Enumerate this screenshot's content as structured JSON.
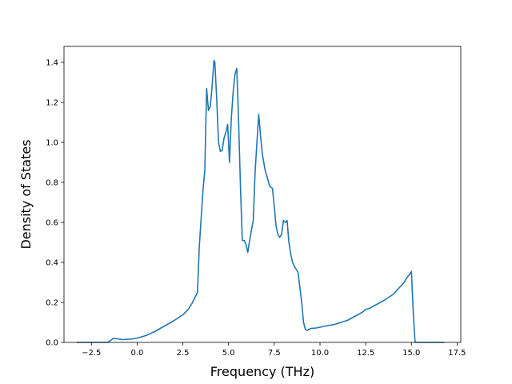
{
  "chart_data": {
    "type": "line",
    "title": "",
    "xlabel": "Frequency (THz)",
    "ylabel": "Density of States",
    "xlim": [
      -4.0,
      17.7
    ],
    "ylim": [
      0.0,
      1.48
    ],
    "xticks": [
      -2.5,
      0.0,
      2.5,
      5.0,
      7.5,
      10.0,
      12.5,
      15.0,
      17.5
    ],
    "xtick_labels": [
      "−2.5",
      "0.0",
      "2.5",
      "5.0",
      "7.5",
      "10.0",
      "12.5",
      "15.0",
      "17.5"
    ],
    "yticks": [
      0.0,
      0.2,
      0.4,
      0.6,
      0.8,
      1.0,
      1.2,
      1.4
    ],
    "ytick_labels": [
      "0.0",
      "0.2",
      "0.4",
      "0.6",
      "0.8",
      "1.0",
      "1.2",
      "1.4"
    ],
    "grid": false,
    "line_color": "#1f77b4",
    "series": [
      {
        "x": [
          -3.3,
          -2.5,
          -1.6,
          -1.3,
          -1.1,
          -0.8,
          -0.3,
          0.0,
          0.5,
          1.0,
          1.5,
          2.0,
          2.5,
          2.8,
          3.0,
          3.3,
          3.4,
          3.5,
          3.6,
          3.7,
          3.8,
          3.9,
          4.0,
          4.1,
          4.2,
          4.25,
          4.35,
          4.45,
          4.55,
          4.65,
          4.75,
          4.85,
          4.95,
          5.05,
          5.15,
          5.25,
          5.35,
          5.45,
          5.55,
          5.65,
          5.75,
          5.85,
          5.95,
          6.05,
          6.15,
          6.25,
          6.35,
          6.45,
          6.55,
          6.65,
          6.75,
          6.85,
          7.0,
          7.1,
          7.25,
          7.4,
          7.5,
          7.6,
          7.7,
          7.8,
          7.9,
          8.0,
          8.1,
          8.2,
          8.3,
          8.4,
          8.5,
          8.6,
          8.8,
          9.0,
          9.1,
          9.2,
          9.3,
          9.5,
          9.8,
          10.2,
          10.8,
          11.5,
          12.0,
          12.3,
          12.5,
          12.7,
          13.0,
          13.5,
          14.0,
          14.3,
          14.6,
          14.8,
          14.9,
          15.0,
          15.1,
          15.2,
          15.6,
          16.8
        ],
        "y": [
          0.0,
          0.0,
          0.0,
          0.02,
          0.018,
          0.014,
          0.017,
          0.021,
          0.035,
          0.056,
          0.082,
          0.108,
          0.138,
          0.165,
          0.195,
          0.25,
          0.48,
          0.62,
          0.76,
          0.86,
          1.27,
          1.16,
          1.18,
          1.28,
          1.41,
          1.4,
          1.22,
          1.0,
          0.955,
          0.96,
          1.02,
          1.05,
          1.09,
          0.9,
          1.12,
          1.25,
          1.34,
          1.37,
          1.1,
          0.78,
          0.51,
          0.51,
          0.49,
          0.45,
          0.51,
          0.56,
          0.61,
          0.85,
          1.0,
          1.14,
          1.03,
          0.94,
          0.86,
          0.83,
          0.78,
          0.77,
          0.68,
          0.58,
          0.54,
          0.525,
          0.54,
          0.61,
          0.6,
          0.61,
          0.5,
          0.44,
          0.4,
          0.38,
          0.35,
          0.2,
          0.1,
          0.065,
          0.06,
          0.07,
          0.072,
          0.08,
          0.09,
          0.11,
          0.135,
          0.15,
          0.165,
          0.17,
          0.185,
          0.21,
          0.24,
          0.27,
          0.3,
          0.33,
          0.34,
          0.355,
          0.15,
          0.0,
          0.0,
          0.0
        ]
      }
    ]
  }
}
